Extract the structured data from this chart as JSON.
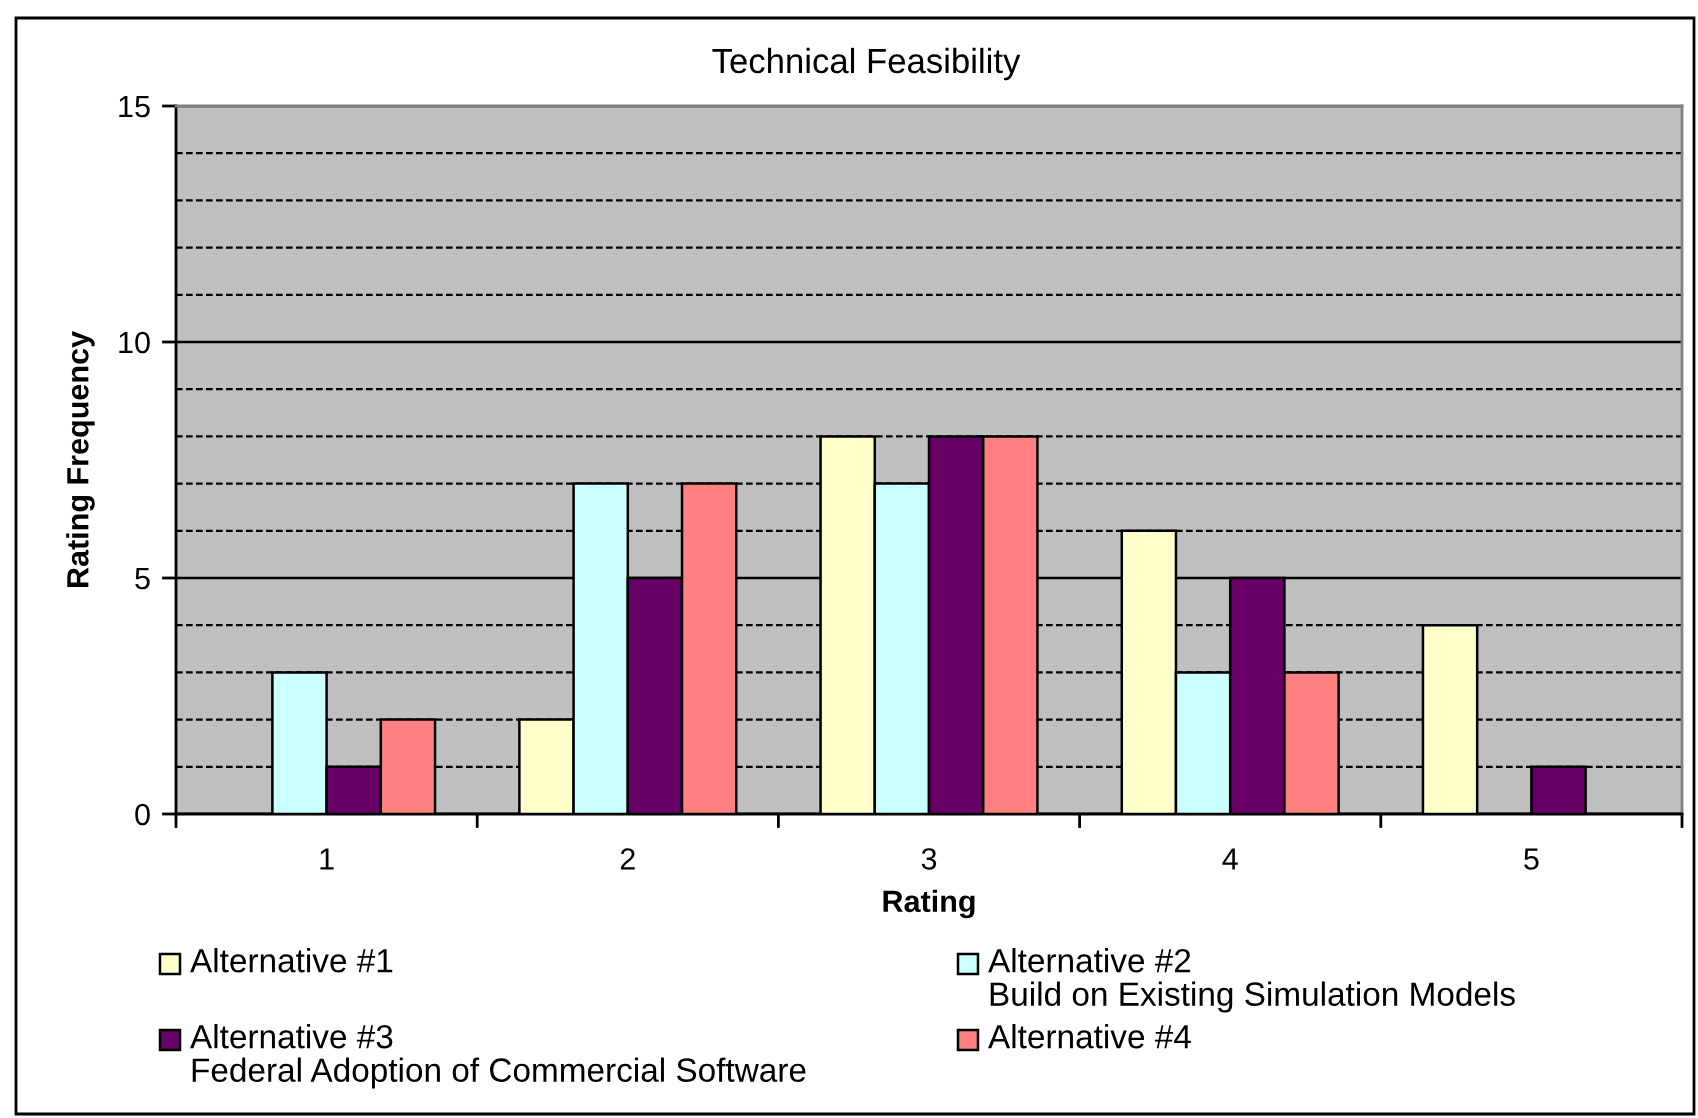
{
  "chart_data": {
    "type": "bar",
    "title": "Technical Feasibility",
    "xlabel": "Rating",
    "ylabel": "Rating Frequency",
    "categories": [
      "1",
      "2",
      "3",
      "4",
      "5"
    ],
    "series": [
      {
        "name": "Alternative #1",
        "color": "#ffffcc",
        "values": [
          0,
          2,
          8,
          6,
          4
        ]
      },
      {
        "name": "Alternative #2\nBuild on Existing Simulation Models",
        "color": "#ccffff",
        "values": [
          3,
          7,
          7,
          3,
          0
        ]
      },
      {
        "name": "Alternative #3\nFederal Adoption of Commercial Software",
        "color": "#660066",
        "values": [
          1,
          5,
          8,
          5,
          1
        ]
      },
      {
        "name": "Alternative #4",
        "color": "#ff8080",
        "values": [
          2,
          7,
          8,
          3,
          0
        ]
      }
    ],
    "ylim": [
      0,
      15
    ],
    "yticks": [
      0,
      {
        "value": 1,
        "label": null
      },
      {
        "value": 2,
        "label": null
      },
      {
        "value": 3,
        "label": null
      },
      {
        "value": 4,
        "label": null
      },
      5,
      {
        "value": 6,
        "label": null
      },
      {
        "value": 7,
        "label": null
      },
      {
        "value": 8,
        "label": null
      },
      {
        "value": 9,
        "label": null
      },
      10,
      {
        "value": 11,
        "label": null
      },
      {
        "value": 12,
        "label": null
      },
      {
        "value": 13,
        "label": null
      },
      {
        "value": 14,
        "label": null
      },
      15
    ],
    "grid": "y",
    "legend": "bottom"
  }
}
